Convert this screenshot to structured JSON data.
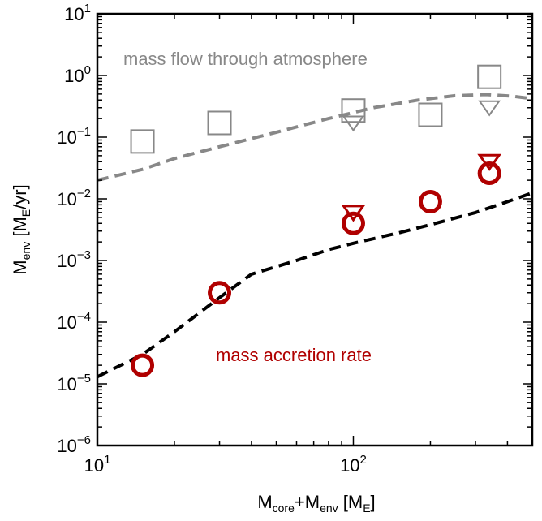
{
  "chart_data": {
    "type": "scatter",
    "xscale": "log",
    "yscale": "log",
    "xlim": [
      10,
      500
    ],
    "ylim": [
      1e-06,
      10
    ],
    "grid": false,
    "xlabel": {
      "base": "M",
      "sub1": "core",
      "mid": "+M",
      "sub2": "env",
      "tail": " [M",
      "sub3": "E",
      "end": "]"
    },
    "ylabel": {
      "base": "M",
      "sub1": "env",
      "mid": " [M",
      "sub2": "E",
      "end": "/yr]"
    },
    "x_ticks": [
      {
        "value": 10,
        "base": "10",
        "exp": "1"
      },
      {
        "value": 100,
        "base": "10",
        "exp": "2"
      }
    ],
    "y_ticks": [
      {
        "value": 1e-06,
        "base": "10",
        "exp": "−6"
      },
      {
        "value": 1e-05,
        "base": "10",
        "exp": "−5"
      },
      {
        "value": 0.0001,
        "base": "10",
        "exp": "−4"
      },
      {
        "value": 0.001,
        "base": "10",
        "exp": "−3"
      },
      {
        "value": 0.01,
        "base": "10",
        "exp": "−2"
      },
      {
        "value": 0.1,
        "base": "10",
        "exp": "−1"
      },
      {
        "value": 1,
        "base": "10",
        "exp": "0"
      },
      {
        "value": 10,
        "base": "10",
        "exp": "1"
      }
    ],
    "annotations": [
      {
        "text": "mass flow through atmosphere",
        "color": "#888888"
      },
      {
        "text": "mass accretion rate",
        "color": "#b00000"
      }
    ],
    "series": [
      {
        "marker": "square",
        "color": "#888888",
        "points": [
          [
            15,
            0.085
          ],
          [
            30,
            0.17
          ],
          [
            100,
            0.27
          ],
          [
            200,
            0.23
          ],
          [
            340,
            0.95
          ]
        ]
      },
      {
        "marker": "triangle-down",
        "color": "#888888",
        "points": [
          [
            100,
            0.17
          ],
          [
            340,
            0.3
          ]
        ]
      },
      {
        "marker": "circle",
        "color": "#b00000",
        "points": [
          [
            15,
            2e-05
          ],
          [
            30,
            0.0003
          ],
          [
            100,
            0.004
          ],
          [
            200,
            0.009
          ],
          [
            340,
            0.026
          ]
        ]
      },
      {
        "marker": "triangle-down",
        "color": "#b00000",
        "points": [
          [
            100,
            0.006
          ],
          [
            340,
            0.04
          ]
        ]
      },
      {
        "line": "dashed",
        "color": "#888888",
        "points": [
          [
            10,
            0.02
          ],
          [
            15,
            0.03
          ],
          [
            20,
            0.045
          ],
          [
            30,
            0.07
          ],
          [
            50,
            0.12
          ],
          [
            80,
            0.2
          ],
          [
            120,
            0.3
          ],
          [
            180,
            0.4
          ],
          [
            250,
            0.47
          ],
          [
            330,
            0.49
          ],
          [
            420,
            0.46
          ],
          [
            500,
            0.42
          ]
        ]
      },
      {
        "line": "dashed",
        "color": "#000000",
        "points": [
          [
            10,
            1.3e-05
          ],
          [
            15,
            3e-05
          ],
          [
            20,
            7e-05
          ],
          [
            30,
            0.00025
          ],
          [
            40,
            0.0006
          ],
          [
            60,
            0.001
          ],
          [
            80,
            0.0015
          ],
          [
            100,
            0.0019
          ],
          [
            150,
            0.0028
          ],
          [
            200,
            0.0038
          ],
          [
            300,
            0.006
          ],
          [
            400,
            0.009
          ],
          [
            500,
            0.0125
          ]
        ]
      }
    ]
  }
}
